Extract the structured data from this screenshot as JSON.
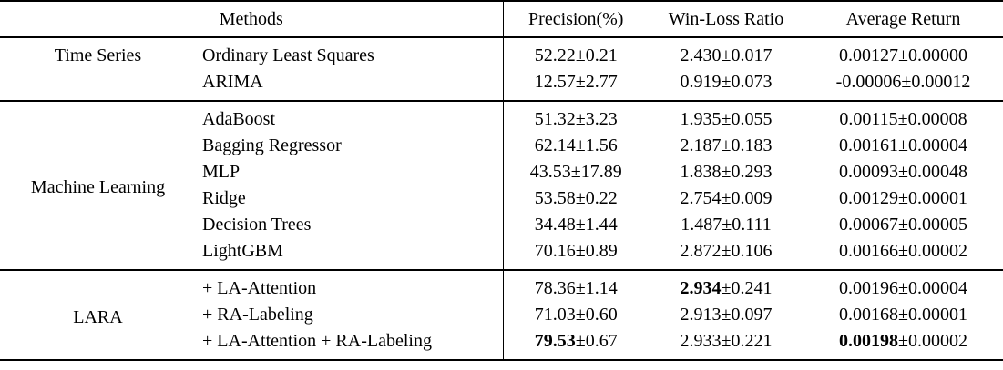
{
  "colors": {
    "text": "#000000",
    "rule": "#000000",
    "background": "#ffffff"
  },
  "table": {
    "plus_minus": "±",
    "columns": [
      {
        "label": "Methods"
      },
      {
        "label": "Precision(%)"
      },
      {
        "label": "Win-Loss Ratio"
      },
      {
        "label": "Average Return"
      }
    ],
    "sections": [
      {
        "group": "Time Series",
        "rows": [
          {
            "method": "Ordinary Least Squares",
            "cells": [
              {
                "m": "52.22",
                "e": "0.21"
              },
              {
                "m": "2.430",
                "e": "0.017"
              },
              {
                "m": "0.00127",
                "e": "0.00000"
              }
            ]
          },
          {
            "method": "ARIMA",
            "cells": [
              {
                "m": "12.57",
                "e": "2.77"
              },
              {
                "m": "0.919",
                "e": "0.073"
              },
              {
                "m": "-0.00006",
                "e": "0.00012"
              }
            ]
          }
        ]
      },
      {
        "group": "Machine Learning",
        "rows": [
          {
            "method": "AdaBoost",
            "cells": [
              {
                "m": "51.32",
                "e": "3.23"
              },
              {
                "m": "1.935",
                "e": "0.055"
              },
              {
                "m": "0.00115",
                "e": "0.00008"
              }
            ]
          },
          {
            "method": "Bagging Regressor",
            "cells": [
              {
                "m": "62.14",
                "e": "1.56"
              },
              {
                "m": "2.187",
                "e": "0.183"
              },
              {
                "m": "0.00161",
                "e": "0.00004"
              }
            ]
          },
          {
            "method": "MLP",
            "cells": [
              {
                "m": "43.53",
                "e": "17.89"
              },
              {
                "m": "1.838",
                "e": "0.293"
              },
              {
                "m": "0.00093",
                "e": "0.00048"
              }
            ]
          },
          {
            "method": "Ridge",
            "cells": [
              {
                "m": "53.58",
                "e": "0.22"
              },
              {
                "m": "2.754",
                "e": "0.009"
              },
              {
                "m": "0.00129",
                "e": "0.00001"
              }
            ]
          },
          {
            "method": "Decision Trees",
            "cells": [
              {
                "m": "34.48",
                "e": "1.44"
              },
              {
                "m": "1.487",
                "e": "0.111"
              },
              {
                "m": "0.00067",
                "e": "0.00005"
              }
            ]
          },
          {
            "method": "LightGBM",
            "cells": [
              {
                "m": "70.16",
                "e": "0.89"
              },
              {
                "m": "2.872",
                "e": "0.106"
              },
              {
                "m": "0.00166",
                "e": "0.00002"
              }
            ]
          }
        ]
      },
      {
        "group": "LARA",
        "rows": [
          {
            "method": "+ LA-Attention",
            "cells": [
              {
                "m": "78.36",
                "e": "1.14"
              },
              {
                "m": "2.934",
                "e": "0.241",
                "bold": true
              },
              {
                "m": "0.00196",
                "e": "0.00004"
              }
            ]
          },
          {
            "method": "+ RA-Labeling",
            "cells": [
              {
                "m": "71.03",
                "e": "0.60"
              },
              {
                "m": "2.913",
                "e": "0.097"
              },
              {
                "m": "0.00168",
                "e": "0.00001"
              }
            ]
          },
          {
            "method": "+ LA-Attention + RA-Labeling",
            "cells": [
              {
                "m": "79.53",
                "e": "0.67",
                "bold": true
              },
              {
                "m": "2.933",
                "e": "0.221"
              },
              {
                "m": "0.00198",
                "e": "0.00002",
                "bold": true
              }
            ]
          }
        ]
      }
    ]
  }
}
